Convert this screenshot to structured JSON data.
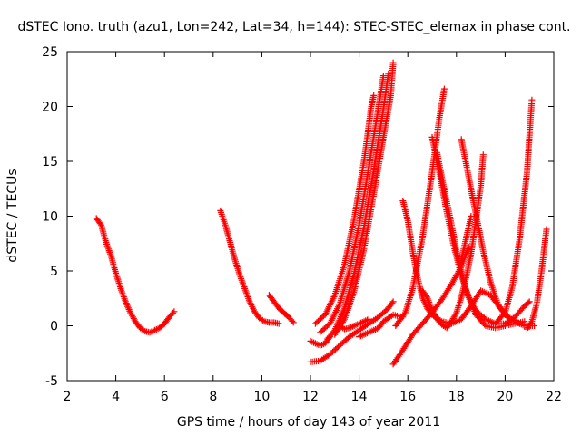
{
  "chart_data": {
    "type": "scatter",
    "title": "dSTEC Iono. truth (azu1, Lon=242, Lat=34, h=144): STEC-STEC_elemax in phase cont.",
    "xlabel": "GPS time / hours of day 143 of year 2011",
    "ylabel": "dSTEC  / TECUs",
    "xlim": [
      2,
      22
    ],
    "ylim": [
      -5,
      25
    ],
    "xticks": [
      2,
      4,
      6,
      8,
      10,
      12,
      14,
      16,
      18,
      20,
      22
    ],
    "yticks": [
      -5,
      0,
      5,
      10,
      15,
      20,
      25
    ],
    "grid": false,
    "marker": "+",
    "color": "#ff0000",
    "series": [
      {
        "points": [
          [
            3.2,
            9.8
          ],
          [
            3.4,
            9.2
          ],
          [
            3.6,
            7.6
          ],
          [
            3.8,
            6.4
          ],
          [
            4.0,
            4.8
          ],
          [
            4.2,
            3.4
          ],
          [
            4.4,
            2.2
          ],
          [
            4.6,
            1.2
          ],
          [
            4.8,
            0.4
          ],
          [
            5.0,
            -0.2
          ],
          [
            5.2,
            -0.5
          ],
          [
            5.4,
            -0.6
          ],
          [
            5.6,
            -0.4
          ],
          [
            5.8,
            -0.2
          ],
          [
            6.0,
            0.2
          ],
          [
            6.2,
            0.8
          ],
          [
            6.4,
            1.3
          ]
        ]
      },
      {
        "points": [
          [
            8.3,
            10.5
          ],
          [
            8.5,
            9.2
          ],
          [
            8.7,
            7.6
          ],
          [
            8.9,
            6.0
          ],
          [
            9.1,
            4.6
          ],
          [
            9.3,
            3.4
          ],
          [
            9.5,
            2.2
          ],
          [
            9.7,
            1.3
          ],
          [
            9.9,
            0.7
          ],
          [
            10.1,
            0.4
          ],
          [
            10.3,
            0.3
          ],
          [
            10.5,
            0.3
          ],
          [
            10.7,
            0.2
          ]
        ]
      },
      {
        "points": [
          [
            10.3,
            2.8
          ],
          [
            10.5,
            2.2
          ],
          [
            10.7,
            1.6
          ],
          [
            10.9,
            1.2
          ],
          [
            11.1,
            0.8
          ],
          [
            11.3,
            0.3
          ]
        ]
      },
      {
        "points": [
          [
            12.0,
            -1.4
          ],
          [
            12.2,
            -1.6
          ],
          [
            12.4,
            -1.8
          ],
          [
            12.6,
            -1.6
          ],
          [
            12.8,
            -1.0
          ]
        ]
      },
      {
        "points": [
          [
            12.0,
            -3.3
          ],
          [
            12.4,
            -3.2
          ],
          [
            12.8,
            -2.6
          ],
          [
            13.2,
            -1.8
          ],
          [
            13.6,
            -1.0
          ],
          [
            14.0,
            -0.4
          ],
          [
            14.4,
            0.2
          ],
          [
            14.8,
            0.8
          ],
          [
            15.2,
            1.6
          ],
          [
            15.4,
            2.2
          ]
        ]
      },
      {
        "points": [
          [
            12.2,
            0.2
          ],
          [
            12.6,
            1.0
          ],
          [
            13.0,
            2.8
          ],
          [
            13.4,
            5.6
          ],
          [
            13.8,
            9.8
          ],
          [
            14.2,
            15.0
          ],
          [
            14.5,
            20.0
          ],
          [
            14.6,
            21.0
          ]
        ]
      },
      {
        "points": [
          [
            12.4,
            -0.6
          ],
          [
            12.8,
            0.2
          ],
          [
            13.2,
            2.0
          ],
          [
            13.6,
            5.0
          ],
          [
            14.0,
            9.2
          ],
          [
            14.4,
            14.5
          ],
          [
            14.8,
            20.0
          ],
          [
            15.0,
            22.8
          ]
        ]
      },
      {
        "points": [
          [
            12.7,
            -1.2
          ],
          [
            13.0,
            -0.4
          ],
          [
            13.4,
            1.6
          ],
          [
            13.8,
            4.8
          ],
          [
            14.2,
            9.0
          ],
          [
            14.6,
            14.2
          ],
          [
            15.0,
            19.8
          ],
          [
            15.2,
            23.0
          ]
        ]
      },
      {
        "points": [
          [
            13.0,
            -0.8
          ],
          [
            13.4,
            0.6
          ],
          [
            13.8,
            3.2
          ],
          [
            14.2,
            7.0
          ],
          [
            14.6,
            12.0
          ],
          [
            15.0,
            17.2
          ],
          [
            15.3,
            21.0
          ],
          [
            15.4,
            24.0
          ]
        ]
      },
      {
        "points": [
          [
            13.2,
            0.0
          ],
          [
            13.4,
            -0.3
          ],
          [
            13.6,
            -0.2
          ],
          [
            13.8,
            0.0
          ],
          [
            14.0,
            0.2
          ],
          [
            14.2,
            0.4
          ],
          [
            14.4,
            0.6
          ]
        ]
      },
      {
        "points": [
          [
            14.0,
            -1.0
          ],
          [
            14.4,
            -0.6
          ],
          [
            14.8,
            -0.2
          ],
          [
            15.0,
            0.4
          ],
          [
            15.4,
            1.0
          ],
          [
            15.8,
            0.8
          ]
        ]
      },
      {
        "points": [
          [
            15.4,
            -3.5
          ],
          [
            15.8,
            -2.2
          ],
          [
            16.2,
            -0.8
          ],
          [
            16.6,
            0.2
          ],
          [
            17.0,
            1.2
          ],
          [
            17.4,
            2.4
          ],
          [
            17.8,
            3.8
          ],
          [
            18.2,
            5.4
          ],
          [
            18.5,
            7.2
          ]
        ]
      },
      {
        "points": [
          [
            15.5,
            0.0
          ],
          [
            15.9,
            1.2
          ],
          [
            16.2,
            3.4
          ],
          [
            16.6,
            8.0
          ],
          [
            17.0,
            14.0
          ],
          [
            17.3,
            19.0
          ],
          [
            17.5,
            21.6
          ]
        ]
      },
      {
        "points": [
          [
            15.8,
            11.4
          ],
          [
            16.0,
            9.6
          ],
          [
            16.2,
            6.8
          ],
          [
            16.4,
            4.4
          ],
          [
            16.6,
            2.6
          ],
          [
            16.8,
            1.6
          ],
          [
            17.0,
            1.0
          ],
          [
            17.4,
            0.4
          ],
          [
            17.8,
            0.2
          ],
          [
            18.2,
            0.6
          ],
          [
            18.6,
            1.8
          ],
          [
            19.0,
            3.2
          ],
          [
            19.4,
            2.8
          ],
          [
            19.8,
            1.6
          ],
          [
            20.2,
            0.6
          ],
          [
            20.6,
            0.2
          ]
        ]
      },
      {
        "points": [
          [
            16.6,
            3.2
          ],
          [
            16.8,
            2.6
          ],
          [
            17.0,
            1.4
          ],
          [
            17.2,
            0.6
          ],
          [
            17.4,
            0.1
          ],
          [
            17.6,
            -0.2
          ],
          [
            17.8,
            0.4
          ],
          [
            18.0,
            1.2
          ],
          [
            18.2,
            2.6
          ],
          [
            18.4,
            4.4
          ],
          [
            18.6,
            6.6
          ],
          [
            18.8,
            9.6
          ],
          [
            19.0,
            12.8
          ],
          [
            19.1,
            15.6
          ]
        ]
      },
      {
        "points": [
          [
            17.0,
            17.2
          ],
          [
            17.3,
            14.0
          ],
          [
            17.6,
            10.4
          ],
          [
            17.9,
            7.2
          ],
          [
            18.2,
            4.6
          ],
          [
            18.5,
            2.6
          ],
          [
            18.8,
            1.4
          ],
          [
            19.2,
            0.6
          ],
          [
            19.6,
            0.2
          ],
          [
            20.0,
            0.2
          ],
          [
            20.4,
            0.8
          ],
          [
            20.8,
            1.8
          ],
          [
            21.0,
            2.2
          ]
        ]
      },
      {
        "points": [
          [
            17.2,
            15.8
          ],
          [
            17.5,
            12.4
          ],
          [
            17.8,
            9.2
          ],
          [
            18.0,
            6.8
          ],
          [
            18.4,
            3.2
          ],
          [
            18.8,
            1.0
          ],
          [
            19.2,
            0.0
          ],
          [
            19.6,
            -0.2
          ],
          [
            20.0,
            0.0
          ],
          [
            20.4,
            0.2
          ],
          [
            20.8,
            0.4
          ]
        ]
      },
      {
        "points": [
          [
            18.2,
            17.0
          ],
          [
            18.5,
            13.6
          ],
          [
            18.8,
            10.2
          ],
          [
            19.1,
            6.8
          ],
          [
            19.4,
            4.0
          ],
          [
            19.7,
            2.0
          ],
          [
            20.0,
            1.0
          ],
          [
            20.4,
            0.4
          ],
          [
            20.8,
            0.0
          ],
          [
            21.2,
            0.0
          ]
        ]
      },
      {
        "points": [
          [
            18.6,
            10.0
          ],
          [
            18.4,
            8.0
          ],
          [
            18.2,
            6.0
          ]
        ]
      },
      {
        "points": [
          [
            19.6,
            0.2
          ],
          [
            20.0,
            1.2
          ],
          [
            20.3,
            3.6
          ],
          [
            20.6,
            8.0
          ],
          [
            20.9,
            14.0
          ],
          [
            21.1,
            20.6
          ]
        ]
      },
      {
        "points": [
          [
            20.9,
            -0.3
          ],
          [
            21.1,
            0.4
          ],
          [
            21.3,
            2.0
          ],
          [
            21.5,
            5.0
          ],
          [
            21.7,
            8.8
          ]
        ]
      }
    ]
  }
}
